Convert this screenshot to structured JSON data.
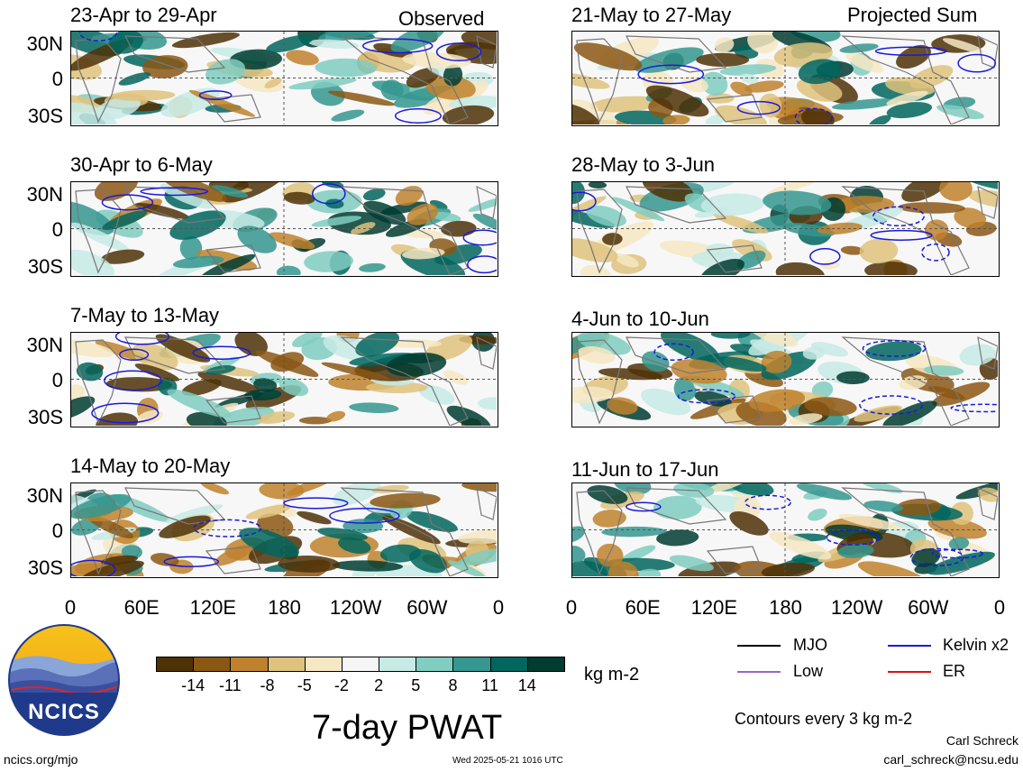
{
  "observed_label": "Observed",
  "projected_label": "Projected Sum",
  "panels_left": [
    {
      "title": "23-Apr to 29-Apr"
    },
    {
      "title": "30-Apr to 6-May"
    },
    {
      "title": "7-May to 13-May"
    },
    {
      "title": "14-May to 20-May"
    }
  ],
  "panels_right": [
    {
      "title": "21-May to 27-May"
    },
    {
      "title": "28-May to 3-Jun"
    },
    {
      "title": "4-Jun to 10-Jun"
    },
    {
      "title": "11-Jun to 17-Jun"
    }
  ],
  "lat_labels": [
    "30N",
    "0",
    "30S"
  ],
  "lon_labels": [
    "0",
    "60E",
    "120E",
    "180",
    "120W",
    "60W",
    "0"
  ],
  "colorbar": {
    "colors": [
      "#4f3107",
      "#8b5714",
      "#bf812d",
      "#dfc27d",
      "#f6e8c3",
      "#f5f5f5",
      "#c7eae5",
      "#80cdc1",
      "#35978f",
      "#01665e",
      "#003c30"
    ],
    "labels": [
      "-14",
      "-11",
      "-8",
      "-5",
      "-2",
      "2",
      "5",
      "8",
      "11",
      "14"
    ],
    "units": "kg m-2"
  },
  "main_title": "7-day PWAT",
  "legend": {
    "mjo": "MJO",
    "low": "Low",
    "kelvin": "Kelvin x2",
    "er": "ER",
    "colors": {
      "mjo": "#000000",
      "low": "#9966cc",
      "kelvin": "#1a1adb",
      "er": "#e01010"
    }
  },
  "contours_note": "Contours every 3 kg m-2",
  "author": "Carl Schreck",
  "email": "carl_schreck@ncsu.edu",
  "website": "ncics.org/mjo",
  "timestamp": "Wed 2025-05-21 1016 UTC",
  "logo_text": "NCICS"
}
